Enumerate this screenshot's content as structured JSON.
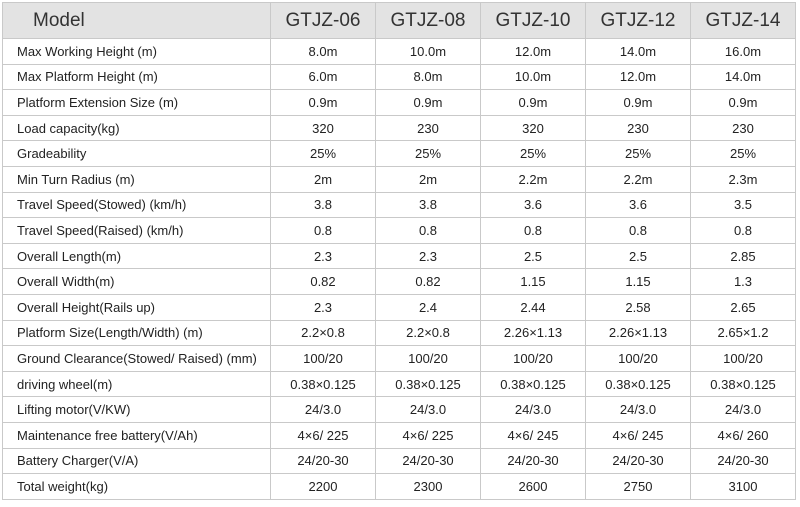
{
  "table": {
    "header": [
      "Model",
      "GTJZ-06",
      "GTJZ-08",
      "GTJZ-10",
      "GTJZ-12",
      "GTJZ-14"
    ],
    "rows": [
      [
        "Max Working Height (m)",
        "8.0m",
        "10.0m",
        "12.0m",
        "14.0m",
        "16.0m"
      ],
      [
        "Max Platform Height (m)",
        "6.0m",
        "8.0m",
        "10.0m",
        "12.0m",
        "14.0m"
      ],
      [
        "Platform Extension Size (m)",
        "0.9m",
        "0.9m",
        "0.9m",
        "0.9m",
        "0.9m"
      ],
      [
        "Load capacity(kg)",
        "320",
        "230",
        "320",
        "230",
        "230"
      ],
      [
        "Gradeability",
        "25%",
        "25%",
        "25%",
        "25%",
        "25%"
      ],
      [
        "Min Turn Radius (m)",
        "2m",
        "2m",
        "2.2m",
        "2.2m",
        "2.3m"
      ],
      [
        "Travel Speed(Stowed) (km/h)",
        "3.8",
        "3.8",
        "3.6",
        "3.6",
        "3.5"
      ],
      [
        "Travel Speed(Raised) (km/h)",
        "0.8",
        "0.8",
        "0.8",
        "0.8",
        "0.8"
      ],
      [
        "Overall Length(m)",
        "2.3",
        "2.3",
        "2.5",
        "2.5",
        "2.85"
      ],
      [
        "Overall Width(m)",
        "0.82",
        "0.82",
        "1.15",
        "1.15",
        "1.3"
      ],
      [
        "Overall Height(Rails up)",
        "2.3",
        "2.4",
        "2.44",
        "2.58",
        "2.65"
      ],
      [
        "Platform Size(Length/Width) (m)",
        "2.2×0.8",
        "2.2×0.8",
        "2.26×1.13",
        "2.26×1.13",
        "2.65×1.2"
      ],
      [
        "Ground Clearance(Stowed/ Raised) (mm)",
        "100/20",
        "100/20",
        "100/20",
        "100/20",
        "100/20"
      ],
      [
        "driving wheel(m)",
        "0.38×0.125",
        "0.38×0.125",
        "0.38×0.125",
        "0.38×0.125",
        "0.38×0.125"
      ],
      [
        "Lifting motor(V/KW)",
        "24/3.0",
        "24/3.0",
        "24/3.0",
        "24/3.0",
        "24/3.0"
      ],
      [
        "Maintenance free battery(V/Ah)",
        "4×6/ 225",
        "4×6/ 225",
        "4×6/ 245",
        "4×6/ 245",
        "4×6/ 260"
      ],
      [
        "Battery Charger(V/A)",
        "24/20-30",
        "24/20-30",
        "24/20-30",
        "24/20-30",
        "24/20-30"
      ],
      [
        "Total weight(kg)",
        "2200",
        "2300",
        "2600",
        "2750",
        "3100"
      ]
    ]
  }
}
